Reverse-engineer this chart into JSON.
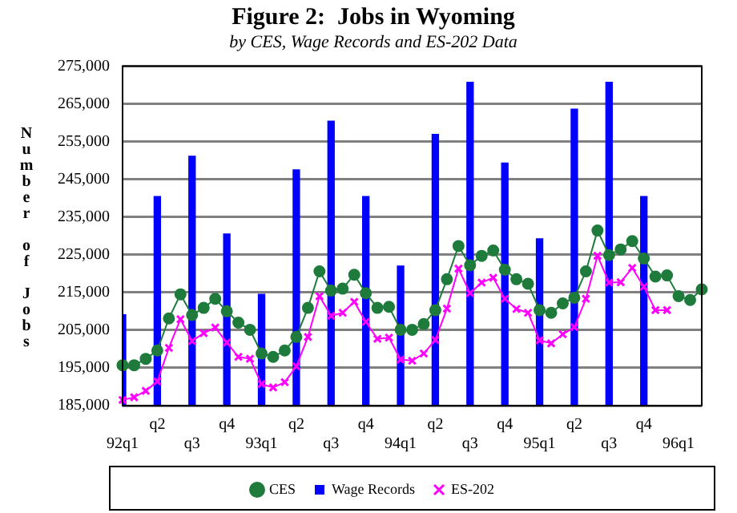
{
  "chart_data": {
    "type": "line",
    "title": "Figure 2:  Jobs in Wyoming",
    "subtitle": "by CES, Wage Records and ES-202 Data",
    "ylabel": "Number of Jobs",
    "categories": [
      "92q1",
      null,
      null,
      "q2",
      null,
      null,
      "q3",
      null,
      null,
      "q4",
      null,
      null,
      "93q1",
      null,
      null,
      "q2",
      null,
      null,
      "q3",
      null,
      null,
      "q4",
      null,
      null,
      "94q1",
      null,
      null,
      "q2",
      null,
      null,
      "q3",
      null,
      null,
      "q4",
      null,
      null,
      "95q1",
      null,
      null,
      "q2",
      null,
      null,
      "q3",
      null,
      null,
      "q4",
      null,
      null,
      "96q1",
      null,
      null
    ],
    "series": [
      {
        "name": "CES",
        "color": "#1e7b3c",
        "marker": "circle",
        "values": [
          195700,
          195700,
          197400,
          199600,
          208100,
          214500,
          209000,
          210900,
          213300,
          210000,
          207000,
          205100,
          198800,
          197900,
          199600,
          203200,
          210900,
          220600,
          215500,
          216000,
          219700,
          214800,
          210900,
          211200,
          205100,
          205100,
          206600,
          210300,
          218500,
          227300,
          222200,
          224700,
          226100,
          221000,
          218500,
          217300,
          210300,
          209600,
          212100,
          213600,
          220600,
          231400,
          224900,
          226400,
          228600,
          224000,
          219200,
          219500,
          214000,
          213000,
          215800
        ]
      },
      {
        "name": "Wage Records",
        "type": "bar",
        "color": "#0000ff",
        "values": [
          209100,
          null,
          null,
          240400,
          null,
          null,
          251100,
          null,
          null,
          230500,
          null,
          null,
          214500,
          null,
          null,
          247500,
          null,
          null,
          260400,
          null,
          null,
          240400,
          null,
          null,
          222000,
          null,
          null,
          256900,
          null,
          null,
          270700,
          null,
          null,
          249300,
          null,
          null,
          229200,
          null,
          null,
          263600,
          null,
          null,
          270700,
          null,
          null,
          240400,
          null,
          null,
          null,
          null,
          null
        ]
      },
      {
        "name": "ES-202",
        "color": "#ff00ff",
        "marker": "cross",
        "values": [
          186500,
          187200,
          188900,
          191400,
          200300,
          207900,
          202100,
          204200,
          205700,
          201700,
          197900,
          197400,
          190700,
          189800,
          191200,
          195400,
          203200,
          214000,
          208800,
          209600,
          212500,
          207200,
          202700,
          203000,
          197200,
          196900,
          198800,
          202400,
          210700,
          221300,
          214800,
          217600,
          218900,
          213300,
          210600,
          209600,
          202300,
          201500,
          203900,
          205800,
          213300,
          224700,
          217600,
          217700,
          221500,
          216500,
          210300,
          210300,
          null,
          null,
          null
        ]
      }
    ],
    "ylim": [
      185000,
      275000
    ],
    "yticks": [
      {
        "value": 185000,
        "label": "185,000"
      },
      {
        "value": 195000,
        "label": "195,000"
      },
      {
        "value": 205000,
        "label": "205,000"
      },
      {
        "value": 215000,
        "label": "215,000"
      },
      {
        "value": 225000,
        "label": "225,000"
      },
      {
        "value": 235000,
        "label": "235,000"
      },
      {
        "value": 245000,
        "label": "245,000"
      },
      {
        "value": 255000,
        "label": "255,000"
      },
      {
        "value": 265000,
        "label": "265,000"
      },
      {
        "value": 275000,
        "label": "275,000"
      }
    ],
    "grid": "y",
    "legend": "bottom",
    "line_style": "solid"
  }
}
